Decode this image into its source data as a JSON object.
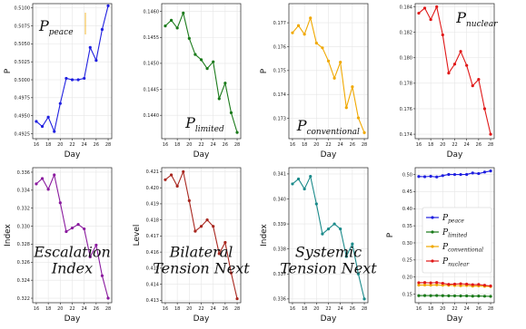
{
  "figure": {
    "days": [
      16,
      17,
      18,
      19,
      20,
      21,
      22,
      23,
      24,
      25,
      26,
      27,
      28
    ]
  },
  "chart_data": [
    {
      "type": "line",
      "annotation_main": "P",
      "annotation_sub": "peace",
      "xlabel": "Day",
      "ylabel": "P",
      "ylim": [
        0.4918,
        0.5106
      ],
      "yticks": [
        0.4925,
        0.495,
        0.4975,
        0.5,
        0.5025,
        0.505,
        0.5075,
        0.51
      ],
      "ytick_labels": [
        "0.4925",
        "0.4950",
        "0.4975",
        "0.5000",
        "0.5025",
        "0.5050",
        "0.5075",
        "0.5100"
      ],
      "xticks": [
        16,
        18,
        20,
        22,
        24,
        26,
        28
      ],
      "color": "#1f1fe0",
      "x": [
        16,
        17,
        18,
        19,
        20,
        21,
        22,
        23,
        24,
        25,
        26,
        27,
        28
      ],
      "y": [
        0.4942,
        0.4935,
        0.4948,
        0.4928,
        0.4967,
        0.5002,
        0.5,
        0.5,
        0.5002,
        0.5045,
        0.5027,
        0.507,
        0.5103
      ]
    },
    {
      "type": "line",
      "annotation_main": "P",
      "annotation_sub": "limited",
      "xlabel": "Day",
      "ylabel": "",
      "ylim": [
        0.14355,
        0.14615
      ],
      "yticks": [
        0.144,
        0.1445,
        0.145,
        0.1455,
        0.146
      ],
      "ytick_labels": [
        "0.1440",
        "0.1445",
        "0.1450",
        "0.1455",
        "0.1460"
      ],
      "xticks": [
        16,
        18,
        20,
        22,
        24,
        26,
        28
      ],
      "color": "#1a7a1a",
      "x": [
        16,
        17,
        18,
        19,
        20,
        21,
        22,
        23,
        24,
        25,
        26,
        27,
        28
      ],
      "y": [
        0.14572,
        0.14583,
        0.14568,
        0.14597,
        0.14548,
        0.14517,
        0.14507,
        0.1449,
        0.14503,
        0.14432,
        0.14462,
        0.14405,
        0.14367
      ]
    },
    {
      "type": "line",
      "annotation_main": "P",
      "annotation_sub": "conventional",
      "xlabel": "Day",
      "ylabel": "P",
      "ylim": [
        0.17215,
        0.1778
      ],
      "yticks": [
        0.173,
        0.174,
        0.175,
        0.176,
        0.177
      ],
      "ytick_labels": [
        "0.173",
        "0.174",
        "0.175",
        "0.176",
        "0.177"
      ],
      "xticks": [
        16,
        18,
        20,
        22,
        24,
        26,
        28
      ],
      "color": "#f0a800",
      "x": [
        16,
        17,
        18,
        19,
        20,
        21,
        22,
        23,
        24,
        25,
        26,
        27,
        28
      ],
      "y": [
        0.17658,
        0.17688,
        0.17652,
        0.1772,
        0.17615,
        0.17595,
        0.1754,
        0.17468,
        0.17535,
        0.17345,
        0.17432,
        0.17302,
        0.1724
      ]
    },
    {
      "type": "line",
      "annotation_main": "P",
      "annotation_sub": "nuclear",
      "xlabel": "Day",
      "ylabel": "",
      "ylim": [
        0.17365,
        0.18425
      ],
      "yticks": [
        0.174,
        0.176,
        0.178,
        0.18,
        0.182,
        0.184
      ],
      "ytick_labels": [
        "0.174",
        "0.176",
        "0.178",
        "0.180",
        "0.182",
        "0.184"
      ],
      "xticks": [
        16,
        18,
        20,
        22,
        24,
        26,
        28
      ],
      "color": "#e01818",
      "x": [
        16,
        17,
        18,
        19,
        20,
        21,
        22,
        23,
        24,
        25,
        26,
        27,
        28
      ],
      "y": [
        0.1835,
        0.1839,
        0.183,
        0.184,
        0.1818,
        0.1788,
        0.1795,
        0.1805,
        0.1794,
        0.1778,
        0.1783,
        0.176,
        0.174
      ]
    },
    {
      "type": "line",
      "annotation_main": "Escalation",
      "annotation_second": "Index",
      "xlabel": "Day",
      "ylabel": "Index",
      "ylim": [
        0.3215,
        0.3365
      ],
      "yticks": [
        0.322,
        0.324,
        0.326,
        0.328,
        0.33,
        0.332,
        0.334,
        0.336
      ],
      "ytick_labels": [
        "0.322",
        "0.324",
        "0.326",
        "0.328",
        "0.330",
        "0.332",
        "0.334",
        "0.336"
      ],
      "xticks": [
        16,
        18,
        20,
        22,
        24,
        26,
        28
      ],
      "color": "#8a1a9e",
      "x": [
        16,
        17,
        18,
        19,
        20,
        21,
        22,
        23,
        24,
        25,
        26,
        27,
        28
      ],
      "y": [
        0.3347,
        0.3353,
        0.3341,
        0.3357,
        0.3326,
        0.3294,
        0.3298,
        0.3302,
        0.3297,
        0.3266,
        0.3279,
        0.3245,
        0.322
      ]
    },
    {
      "type": "line",
      "annotation_main": "Bilateral",
      "annotation_second": "Tension Next",
      "xlabel": "Day",
      "ylabel": "Level",
      "ylim": [
        0.41285,
        0.42125
      ],
      "yticks": [
        0.413,
        0.414,
        0.415,
        0.416,
        0.417,
        0.418,
        0.419,
        0.42,
        0.421
      ],
      "ytick_labels": [
        "0.413",
        "0.414",
        "0.415",
        "0.416",
        "0.417",
        "0.418",
        "0.419",
        "0.420",
        "0.421"
      ],
      "xticks": [
        16,
        18,
        20,
        22,
        24,
        26,
        28
      ],
      "color": "#a8261e",
      "x": [
        16,
        17,
        18,
        19,
        20,
        21,
        22,
        23,
        24,
        25,
        26,
        27,
        28
      ],
      "y": [
        0.4205,
        0.4208,
        0.4201,
        0.421,
        0.4192,
        0.4173,
        0.4176,
        0.418,
        0.4176,
        0.4159,
        0.4166,
        0.4147,
        0.4131
      ]
    },
    {
      "type": "line",
      "annotation_main": "Systemic",
      "annotation_second": "Tension Next",
      "xlabel": "Day",
      "ylabel": "Index",
      "ylim": [
        0.33585,
        0.34125
      ],
      "yticks": [
        0.336,
        0.337,
        0.338,
        0.339,
        0.34,
        0.341
      ],
      "ytick_labels": [
        "0.336",
        "0.337",
        "0.338",
        "0.339",
        "0.340",
        "0.341"
      ],
      "xticks": [
        16,
        18,
        20,
        22,
        24,
        26,
        28
      ],
      "color": "#1a8a8a",
      "x": [
        16,
        17,
        18,
        19,
        20,
        21,
        22,
        23,
        24,
        25,
        26,
        27,
        28
      ],
      "y": [
        0.3406,
        0.3408,
        0.3404,
        0.3409,
        0.3398,
        0.3386,
        0.3388,
        0.339,
        0.3388,
        0.3377,
        0.3382,
        0.337,
        0.336
      ]
    },
    {
      "type": "line",
      "xlabel": "Day",
      "ylabel": "P",
      "ylim": [
        0.125,
        0.52
      ],
      "yticks": [
        0.15,
        0.2,
        0.25,
        0.3,
        0.35,
        0.4,
        0.45,
        0.5
      ],
      "ytick_labels": [
        "0.15",
        "0.20",
        "0.25",
        "0.30",
        "0.35",
        "0.40",
        "0.45",
        "0.50"
      ],
      "xticks": [
        16,
        18,
        20,
        22,
        24,
        26,
        28
      ],
      "legend_position": "center",
      "series": [
        {
          "name": "P",
          "sub": "peace",
          "color": "#1f1fe0",
          "values": [
            0.4942,
            0.4935,
            0.4948,
            0.4928,
            0.4967,
            0.5002,
            0.5,
            0.5,
            0.5002,
            0.5045,
            0.5027,
            0.507,
            0.5103
          ]
        },
        {
          "name": "P",
          "sub": "limited",
          "color": "#1a7a1a",
          "values": [
            0.1457,
            0.1458,
            0.1457,
            0.146,
            0.1455,
            0.1452,
            0.1451,
            0.1449,
            0.145,
            0.1443,
            0.1446,
            0.1441,
            0.1437
          ]
        },
        {
          "name": "P",
          "sub": "conventional",
          "color": "#f0a800",
          "values": [
            0.1766,
            0.1769,
            0.1765,
            0.1772,
            0.1762,
            0.176,
            0.1754,
            0.1747,
            0.1754,
            0.1735,
            0.1743,
            0.173,
            0.1724
          ]
        },
        {
          "name": "P",
          "sub": "nuclear",
          "color": "#e01818",
          "values": [
            0.1835,
            0.1839,
            0.183,
            0.184,
            0.1818,
            0.1788,
            0.1795,
            0.1805,
            0.1794,
            0.1778,
            0.1783,
            0.176,
            0.174
          ]
        }
      ]
    }
  ]
}
